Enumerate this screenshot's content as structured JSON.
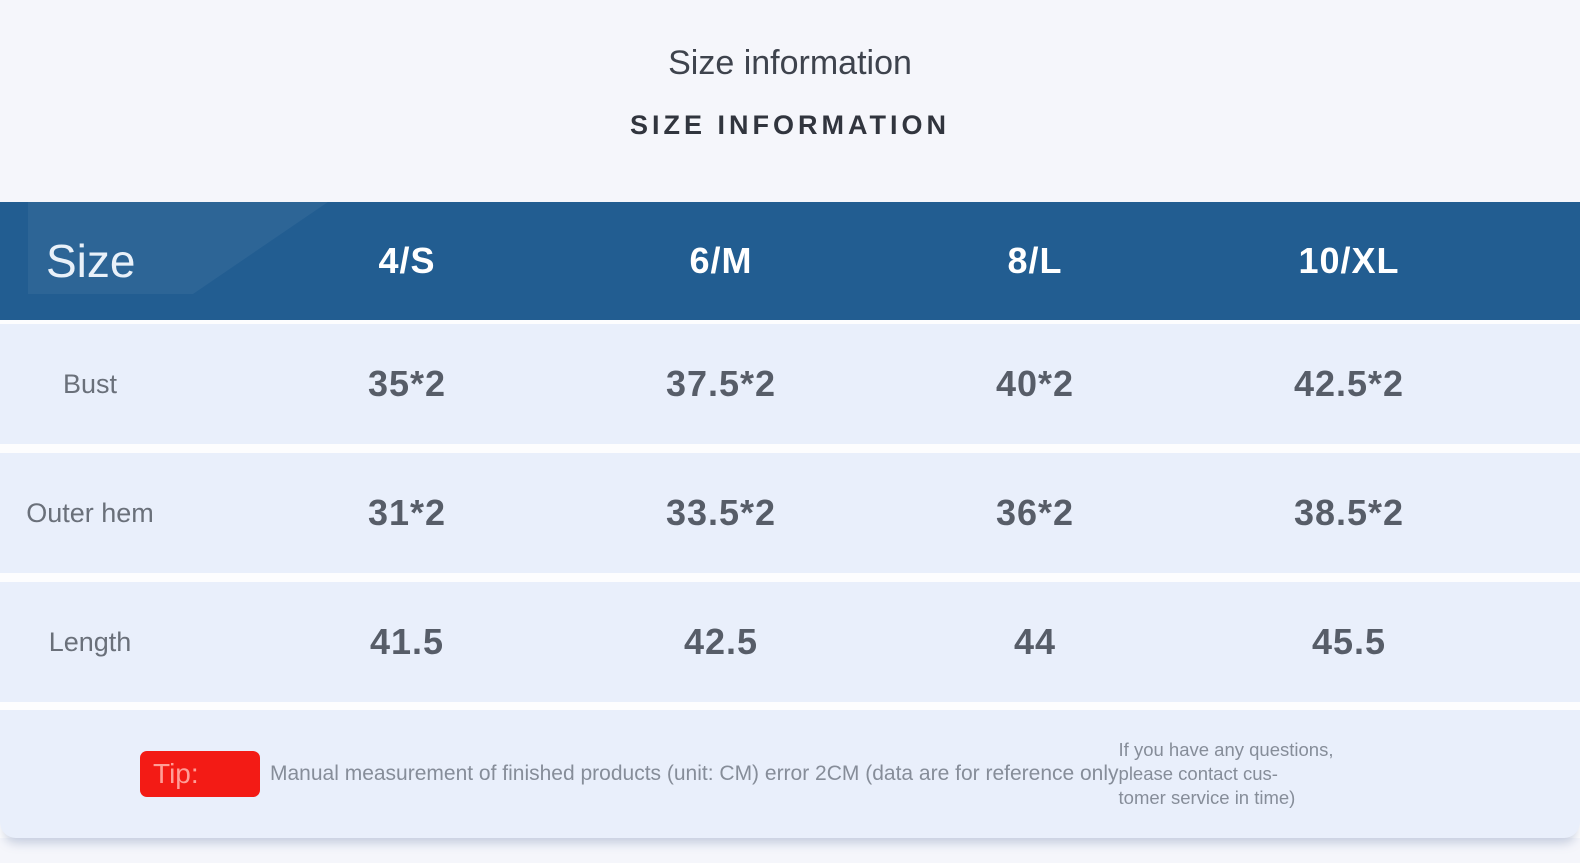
{
  "heading": {
    "title": "Size information",
    "subtitle": "SIZE INFORMATION"
  },
  "chart_data": {
    "type": "table",
    "title": "Size information",
    "unit": "CM",
    "columns": [
      "Size",
      "4/S",
      "6/M",
      "8/L",
      "10/XL"
    ],
    "rows": [
      {
        "label": "Bust",
        "values": [
          "35*2",
          "37.5*2",
          "40*2",
          "42.5*2"
        ]
      },
      {
        "label": "Outer hem",
        "values": [
          "31*2",
          "33.5*2",
          "36*2",
          "38.5*2"
        ]
      },
      {
        "label": "Length",
        "values": [
          "41.5",
          "42.5",
          "44",
          "45.5"
        ]
      }
    ]
  },
  "footer": {
    "tip_label": "Tip:",
    "note": "Manual measurement of finished products (unit: CM) error 2CM (data are for reference only",
    "contact_line1": "If you have any questions, please contact cus-",
    "contact_line2": "tomer service in time)"
  },
  "colors": {
    "header_bg": "#225d91",
    "row_bg": "#e9effb",
    "accent_red": "#f31b15",
    "page_bg": "#f5f6fb"
  }
}
